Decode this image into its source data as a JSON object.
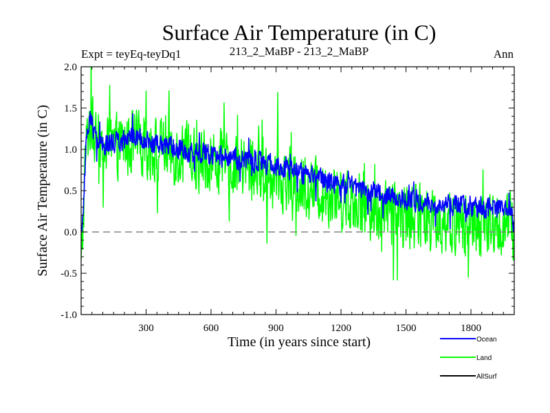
{
  "chart_data": {
    "type": "line",
    "title": "Surface Air Temperature (in C)",
    "subtitle_left": "Expt = teyEq-teyDq1",
    "subtitle_center": "213_2_MaBP - 213_2_MaBP",
    "subtitle_right": "Ann",
    "xlabel": "Time (in years since start)",
    "ylabel": "Surface Air Temperature (in C)",
    "xlim": [
      0,
      2000
    ],
    "ylim": [
      -1.0,
      2.0
    ],
    "x_ticks": [
      300,
      600,
      900,
      1200,
      1500,
      1800
    ],
    "x_tick_labels": [
      "300",
      "600",
      "900",
      "1200",
      "1500",
      "1800"
    ],
    "y_ticks": [
      -1.0,
      -0.5,
      0.0,
      0.5,
      1.0,
      1.5,
      2.0
    ],
    "y_tick_labels": [
      "-1.0",
      "-0.5",
      "0.0",
      "0.5",
      "1.0",
      "1.5",
      "2.0"
    ],
    "reference_line": {
      "y": 0.0,
      "style": "dashed",
      "color": "#808080"
    },
    "legend_position": "bottom-right",
    "series": [
      {
        "name": "Ocean",
        "color": "#0000ff",
        "points": [
          [
            0,
            0.0
          ],
          [
            10,
            0.2
          ],
          [
            20,
            0.9
          ],
          [
            30,
            1.25
          ],
          [
            40,
            1.4
          ],
          [
            60,
            1.2
          ],
          [
            80,
            1.1
          ],
          [
            100,
            1.05
          ],
          [
            150,
            1.08
          ],
          [
            200,
            1.12
          ],
          [
            250,
            1.15
          ],
          [
            300,
            1.1
          ],
          [
            350,
            1.05
          ],
          [
            400,
            1.05
          ],
          [
            450,
            1.0
          ],
          [
            500,
            0.98
          ],
          [
            550,
            0.95
          ],
          [
            600,
            0.93
          ],
          [
            650,
            0.92
          ],
          [
            700,
            0.9
          ],
          [
            750,
            0.88
          ],
          [
            800,
            0.85
          ],
          [
            850,
            0.82
          ],
          [
            900,
            0.8
          ],
          [
            950,
            0.77
          ],
          [
            1000,
            0.72
          ],
          [
            1050,
            0.7
          ],
          [
            1100,
            0.65
          ],
          [
            1150,
            0.6
          ],
          [
            1200,
            0.57
          ],
          [
            1250,
            0.54
          ],
          [
            1300,
            0.5
          ],
          [
            1350,
            0.48
          ],
          [
            1400,
            0.45
          ],
          [
            1450,
            0.43
          ],
          [
            1500,
            0.4
          ],
          [
            1550,
            0.38
          ],
          [
            1600,
            0.37
          ],
          [
            1650,
            0.35
          ],
          [
            1700,
            0.33
          ],
          [
            1750,
            0.32
          ],
          [
            1800,
            0.3
          ],
          [
            1850,
            0.3
          ],
          [
            1900,
            0.28
          ],
          [
            1950,
            0.27
          ],
          [
            1990,
            0.3
          ],
          [
            2000,
            0.0
          ]
        ],
        "variability": 0.15
      },
      {
        "name": "Land",
        "color": "#00ff00",
        "points": [
          [
            0,
            -0.5
          ],
          [
            10,
            0.2
          ],
          [
            20,
            0.9
          ],
          [
            30,
            1.2
          ],
          [
            40,
            1.35
          ],
          [
            60,
            1.15
          ],
          [
            80,
            1.05
          ],
          [
            100,
            1.0
          ],
          [
            150,
            1.02
          ],
          [
            200,
            1.05
          ],
          [
            250,
            1.08
          ],
          [
            300,
            1.03
          ],
          [
            350,
            1.0
          ],
          [
            400,
            0.98
          ],
          [
            450,
            0.95
          ],
          [
            500,
            0.9
          ],
          [
            550,
            0.88
          ],
          [
            600,
            0.85
          ],
          [
            650,
            0.83
          ],
          [
            700,
            0.8
          ],
          [
            750,
            0.78
          ],
          [
            800,
            0.75
          ],
          [
            850,
            0.72
          ],
          [
            900,
            0.68
          ],
          [
            950,
            0.63
          ],
          [
            1000,
            0.58
          ],
          [
            1050,
            0.55
          ],
          [
            1100,
            0.5
          ],
          [
            1150,
            0.46
          ],
          [
            1200,
            0.42
          ],
          [
            1250,
            0.38
          ],
          [
            1300,
            0.33
          ],
          [
            1350,
            0.3
          ],
          [
            1400,
            0.27
          ],
          [
            1450,
            0.24
          ],
          [
            1500,
            0.2
          ],
          [
            1550,
            0.18
          ],
          [
            1600,
            0.16
          ],
          [
            1650,
            0.14
          ],
          [
            1700,
            0.12
          ],
          [
            1750,
            0.1
          ],
          [
            1800,
            0.08
          ],
          [
            1850,
            0.06
          ],
          [
            1900,
            0.05
          ],
          [
            1950,
            0.05
          ],
          [
            1990,
            0.1
          ],
          [
            2000,
            -0.2
          ]
        ],
        "variability": 0.45
      },
      {
        "name": "AllSurf",
        "color": "#000000",
        "points": []
      }
    ]
  }
}
